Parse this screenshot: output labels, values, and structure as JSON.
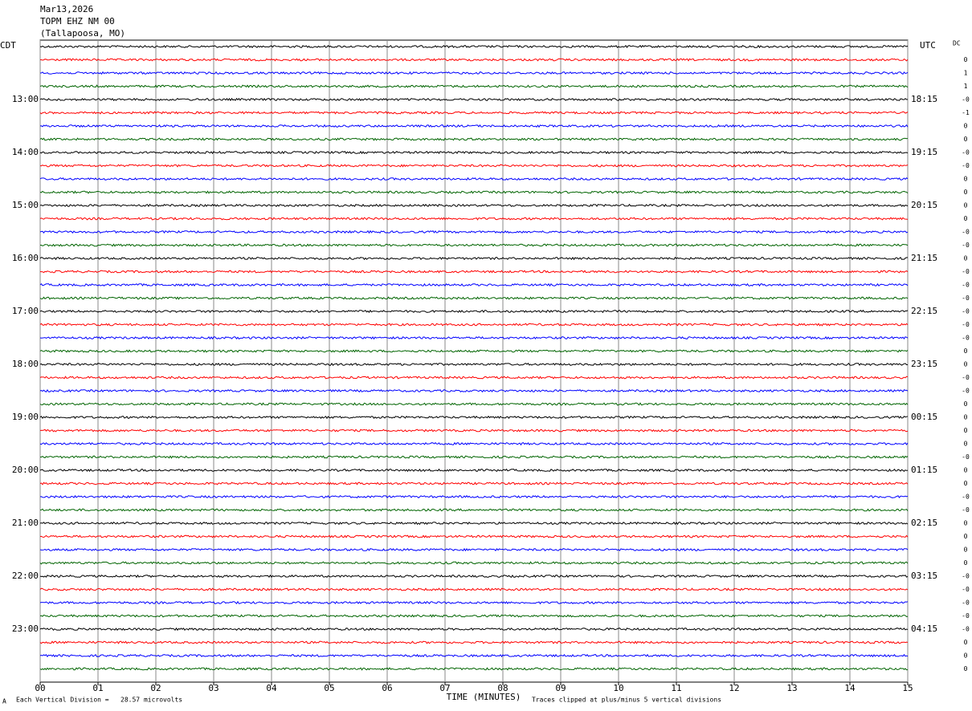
{
  "header": {
    "date": "Mar13,2026",
    "station": "TOPM EHZ NM 00",
    "location": "(Tallapoosa, MO)"
  },
  "left_zone": "CDT",
  "right_zone": "UTC",
  "dc_header": "DC",
  "left_labels": [
    "13:00",
    "14:00",
    "15:00",
    "16:00",
    "17:00",
    "18:00",
    "19:00",
    "20:00",
    "21:00",
    "22:00",
    "23:00"
  ],
  "right_labels": [
    "18:15",
    "19:15",
    "20:15",
    "21:15",
    "22:15",
    "23:15",
    "00:15",
    "01:15",
    "02:15",
    "03:15",
    "04:15"
  ],
  "dc_values": [
    "0",
    "1",
    "1",
    "-0",
    "-1",
    "0",
    "0",
    "-0",
    "-0",
    "0",
    "0",
    "0",
    "0",
    "-0",
    "-0",
    "0",
    "-0",
    "-0",
    "-0",
    "-0",
    "-0",
    "-0",
    "0",
    "0",
    "-0",
    "-0",
    "0",
    "0",
    "0",
    "0",
    "-0",
    "0",
    "0",
    "-0",
    "-0",
    "0",
    "0",
    "0",
    "0",
    "-0",
    "-0",
    "-0",
    "-0",
    "-0",
    "0",
    "0",
    "0"
  ],
  "trace_colors": [
    "#000000",
    "#ff0000",
    "#0000ff",
    "#006400"
  ],
  "x_ticks": [
    "00",
    "01",
    "02",
    "03",
    "04",
    "05",
    "06",
    "07",
    "08",
    "09",
    "10",
    "11",
    "12",
    "13",
    "14",
    "15"
  ],
  "footer": {
    "mark": "A",
    "division": "Each Vertical Division =   28.57 microvolts",
    "axis_title": "TIME (MINUTES)",
    "clip_note": "Traces clipped at plus/minus 5 vertical divisions"
  }
}
